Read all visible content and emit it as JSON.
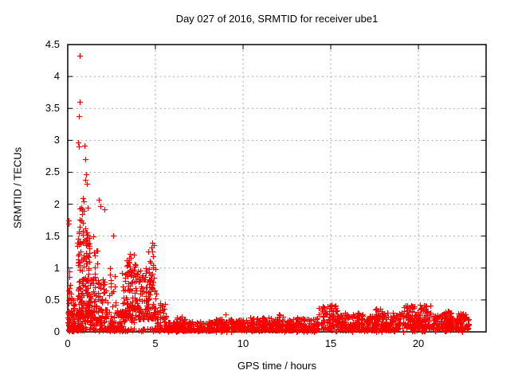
{
  "chart_data": {
    "type": "scatter",
    "title": "Day 027 of 2016, SRMTID for receiver ube1",
    "xlabel": "GPS time / hours",
    "ylabel": "SRMTID / TECUs",
    "xlim": [
      0,
      23.86
    ],
    "ylim": [
      0,
      4.5
    ],
    "xtick_values": [
      0,
      5,
      10,
      15,
      20
    ],
    "xtick_labels": [
      "0",
      "5",
      "10",
      "15",
      "20"
    ],
    "ytick_values": [
      0,
      0.5,
      1,
      1.5,
      2,
      2.5,
      3,
      3.5,
      4,
      4.5
    ],
    "ytick_labels": [
      "0",
      "0.5",
      "1",
      "1.5",
      "2",
      "2.5",
      "3",
      "3.5",
      "4",
      "4.5"
    ],
    "grid": true,
    "legend": false,
    "marker": "plus",
    "marker_size_px": 7,
    "marker_color": "#ff0000",
    "grid_color": "#a8a8a8",
    "border_color": "#000000",
    "seed": 20160127,
    "outliers": [
      [
        0.68,
        4.33
      ],
      [
        0.7,
        3.6
      ],
      [
        0.64,
        3.38
      ],
      [
        0.6,
        2.97
      ],
      [
        0.63,
        2.9
      ],
      [
        0.95,
        2.92
      ],
      [
        1.0,
        2.7
      ],
      [
        1.05,
        2.47
      ],
      [
        1.02,
        2.38
      ],
      [
        1.1,
        2.32
      ],
      [
        0.88,
        2.1
      ],
      [
        0.93,
        2.04
      ],
      [
        1.78,
        2.07
      ],
      [
        1.88,
        1.97
      ],
      [
        2.08,
        1.92
      ],
      [
        0.75,
        1.95
      ],
      [
        0.8,
        1.84
      ],
      [
        0.7,
        1.76
      ],
      [
        0.03,
        1.75
      ],
      [
        0.06,
        1.7
      ],
      [
        0.98,
        1.62
      ],
      [
        1.06,
        1.56
      ],
      [
        2.6,
        1.51
      ],
      [
        1.45,
        1.5
      ],
      [
        4.82,
        1.4
      ],
      [
        4.77,
        1.32
      ],
      [
        3.55,
        1.22
      ],
      [
        9.02,
        0.27
      ]
    ],
    "bands_format": [
      "x_start",
      "x_end",
      "n_points",
      "y_min",
      "y_max",
      "low_bias_exponent"
    ],
    "bands": [
      [
        0.0,
        0.35,
        60,
        0.02,
        0.62,
        1.6
      ],
      [
        0.02,
        0.18,
        6,
        0.6,
        1.05,
        1.0
      ],
      [
        0.3,
        0.6,
        25,
        0.02,
        0.45,
        2.0
      ],
      [
        0.55,
        1.25,
        150,
        0.25,
        1.55,
        1.7
      ],
      [
        0.55,
        1.25,
        40,
        0.02,
        0.28,
        1.0
      ],
      [
        0.6,
        1.15,
        10,
        1.55,
        1.95,
        1.2
      ],
      [
        1.25,
        1.85,
        70,
        0.1,
        1.0,
        1.6
      ],
      [
        1.5,
        1.72,
        6,
        1.0,
        1.3,
        1.0
      ],
      [
        1.85,
        2.25,
        40,
        0.05,
        0.85,
        1.5
      ],
      [
        2.25,
        2.75,
        45,
        0.05,
        1.1,
        1.8
      ],
      [
        2.75,
        3.1,
        28,
        0.03,
        0.35,
        1.5
      ],
      [
        3.1,
        3.95,
        110,
        0.15,
        1.05,
        1.5
      ],
      [
        3.3,
        3.8,
        8,
        1.0,
        1.22,
        1.0
      ],
      [
        3.95,
        5.05,
        130,
        0.2,
        1.0,
        1.4
      ],
      [
        4.6,
        4.95,
        8,
        1.0,
        1.4,
        1.0
      ],
      [
        0.0,
        5.2,
        80,
        0.01,
        0.06,
        1.0
      ],
      [
        5.05,
        5.6,
        50,
        0.03,
        0.45,
        1.8
      ],
      [
        5.6,
        8.3,
        220,
        0.02,
        0.16,
        1.5
      ],
      [
        6.2,
        6.7,
        15,
        0.08,
        0.24,
        1.3
      ],
      [
        8.3,
        10.3,
        160,
        0.03,
        0.2,
        1.5
      ],
      [
        10.3,
        14.3,
        330,
        0.02,
        0.22,
        1.6
      ],
      [
        11.8,
        12.3,
        14,
        0.12,
        0.28,
        1.0
      ],
      [
        14.3,
        15.4,
        90,
        0.05,
        0.42,
        1.5
      ],
      [
        15.4,
        18.9,
        300,
        0.03,
        0.3,
        1.7
      ],
      [
        17.5,
        18.0,
        20,
        0.18,
        0.36,
        1.2
      ],
      [
        18.9,
        20.7,
        170,
        0.05,
        0.42,
        1.5
      ],
      [
        20.7,
        22.85,
        190,
        0.04,
        0.3,
        1.5
      ],
      [
        21.5,
        21.95,
        15,
        0.18,
        0.33,
        1.0
      ],
      [
        5.2,
        14.3,
        60,
        0.0,
        0.04,
        1.0
      ],
      [
        14.3,
        22.85,
        60,
        0.0,
        0.05,
        1.0
      ]
    ]
  }
}
